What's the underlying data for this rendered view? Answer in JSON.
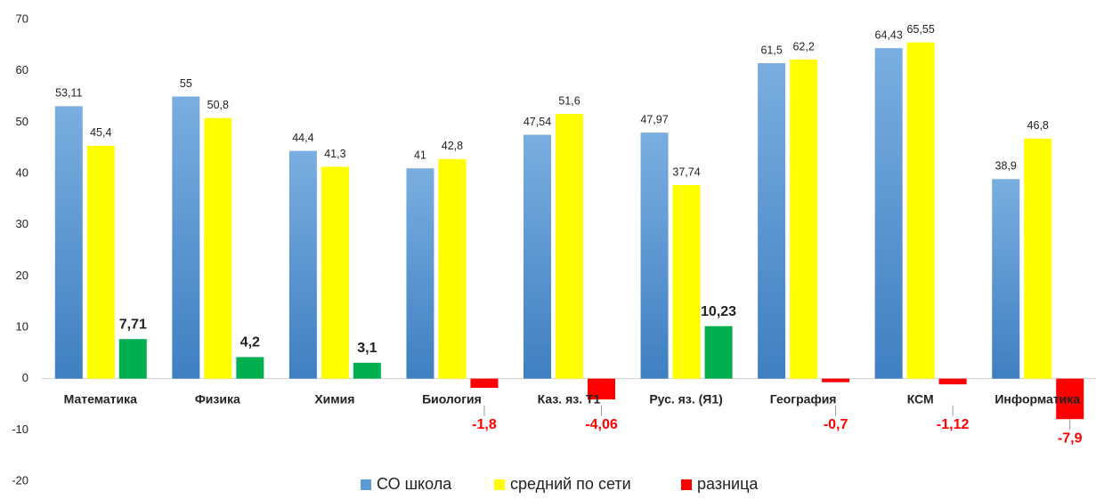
{
  "chart_data": {
    "type": "bar",
    "categories": [
      "Математика",
      "Физика",
      "Химия",
      "Биология",
      "Каз. яз. Т1",
      "Рус. яз. (Я1)",
      "География",
      "КСМ",
      "Информатика"
    ],
    "series": [
      {
        "name": "СО школа",
        "color": "#5b9bd5",
        "values": [
          53.11,
          55,
          44.4,
          41,
          47.54,
          47.97,
          61.5,
          64.43,
          38.9
        ],
        "value_labels": [
          "53,11",
          "55",
          "44,4",
          "41",
          "47,54",
          "47,97",
          "61,5",
          "64,43",
          "38,9"
        ]
      },
      {
        "name": "средний по сети",
        "color": "#ffff00",
        "values": [
          45.4,
          50.8,
          41.3,
          42.8,
          51.6,
          37.74,
          62.2,
          65.55,
          46.8
        ],
        "value_labels": [
          "45,4",
          "50,8",
          "41,3",
          "42,8",
          "51,6",
          "37,74",
          "62,2",
          "65,55",
          "46,8"
        ]
      },
      {
        "name": "разница",
        "color": "#ff0000",
        "positive_color": "#00b050",
        "values": [
          7.71,
          4.2,
          3.1,
          -1.8,
          -4.06,
          10.23,
          -0.7,
          -1.12,
          -7.9
        ],
        "value_labels": [
          "7,71",
          "4,2",
          "3,1",
          "-1,8",
          "-4,06",
          "10,23",
          "-0,7",
          "-1,12",
          "-7,9"
        ]
      }
    ],
    "ylim": [
      -20,
      70
    ],
    "yticks": [
      -20,
      -10,
      0,
      10,
      20,
      30,
      40,
      50,
      60,
      70
    ],
    "grid": false,
    "legend": "bottom"
  }
}
